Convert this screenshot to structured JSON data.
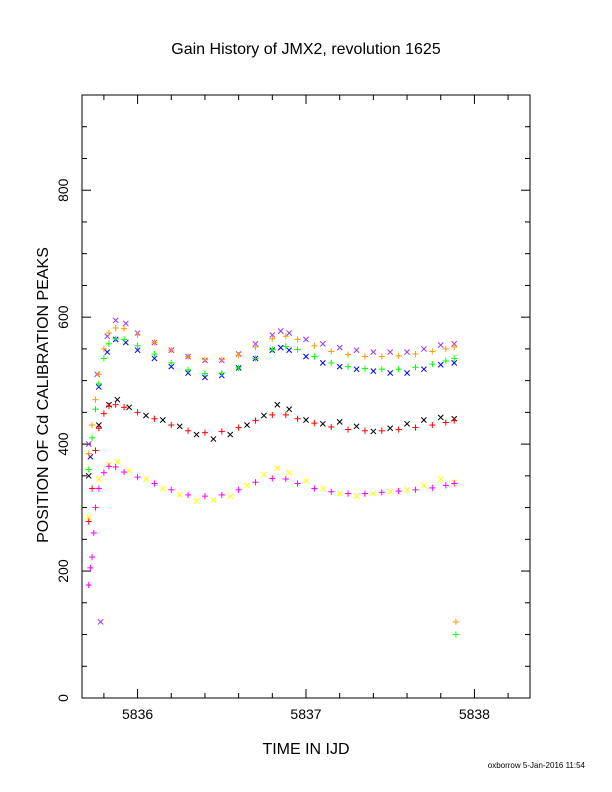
{
  "chart_data": {
    "type": "scatter",
    "title": "Gain History of JMX2, revolution 1625",
    "xlabel": "TIME IN IJD",
    "ylabel": "POSITION OF Cd CALIBRATION PEAKS",
    "xlim": [
      5835.67,
      5838.33
    ],
    "ylim": [
      0,
      950
    ],
    "xticks": [
      5836,
      5837,
      5838
    ],
    "yticks": [
      0,
      200,
      400,
      600,
      800
    ],
    "grid": false,
    "series": [
      {
        "marker": "x",
        "color": "#9933ff",
        "points": [
          [
            5835.71,
            400
          ],
          [
            5835.76,
            510
          ],
          [
            5835.82,
            570
          ],
          [
            5835.87,
            595
          ],
          [
            5835.93,
            590
          ],
          [
            5836.0,
            575
          ],
          [
            5836.1,
            560
          ],
          [
            5836.2,
            548
          ],
          [
            5836.3,
            538
          ],
          [
            5836.4,
            532
          ],
          [
            5836.5,
            532
          ],
          [
            5836.6,
            542
          ],
          [
            5836.7,
            558
          ],
          [
            5836.8,
            572
          ],
          [
            5836.85,
            578
          ],
          [
            5836.9,
            575
          ],
          [
            5837.0,
            565
          ],
          [
            5837.1,
            558
          ],
          [
            5837.2,
            552
          ],
          [
            5837.3,
            548
          ],
          [
            5837.4,
            545
          ],
          [
            5837.5,
            545
          ],
          [
            5837.6,
            545
          ],
          [
            5837.7,
            550
          ],
          [
            5837.8,
            556
          ],
          [
            5837.88,
            558
          ]
        ]
      },
      {
        "marker": "x",
        "color": "#0000ff",
        "points": [
          [
            5835.72,
            380
          ],
          [
            5835.77,
            490
          ],
          [
            5835.82,
            545
          ],
          [
            5835.87,
            565
          ],
          [
            5835.93,
            560
          ],
          [
            5836.0,
            548
          ],
          [
            5836.1,
            535
          ],
          [
            5836.2,
            522
          ],
          [
            5836.3,
            512
          ],
          [
            5836.4,
            505
          ],
          [
            5836.5,
            508
          ],
          [
            5836.6,
            520
          ],
          [
            5836.7,
            535
          ],
          [
            5836.8,
            548
          ],
          [
            5836.85,
            552
          ],
          [
            5836.9,
            548
          ],
          [
            5837.0,
            538
          ],
          [
            5837.1,
            528
          ],
          [
            5837.2,
            522
          ],
          [
            5837.3,
            518
          ],
          [
            5837.4,
            515
          ],
          [
            5837.5,
            512
          ],
          [
            5837.6,
            512
          ],
          [
            5837.7,
            518
          ],
          [
            5837.8,
            525
          ],
          [
            5837.88,
            528
          ]
        ]
      },
      {
        "marker": "x",
        "color": "#000000",
        "points": [
          [
            5835.71,
            350
          ],
          [
            5835.77,
            430
          ],
          [
            5835.83,
            462
          ],
          [
            5835.88,
            470
          ],
          [
            5835.95,
            458
          ],
          [
            5836.05,
            445
          ],
          [
            5836.15,
            438
          ],
          [
            5836.25,
            428
          ],
          [
            5836.35,
            415
          ],
          [
            5836.45,
            408
          ],
          [
            5836.55,
            415
          ],
          [
            5836.65,
            430
          ],
          [
            5836.75,
            445
          ],
          [
            5836.83,
            462
          ],
          [
            5836.9,
            455
          ],
          [
            5837.0,
            438
          ],
          [
            5837.1,
            432
          ],
          [
            5837.2,
            435
          ],
          [
            5837.3,
            428
          ],
          [
            5837.4,
            420
          ],
          [
            5837.5,
            425
          ],
          [
            5837.6,
            432
          ],
          [
            5837.7,
            438
          ],
          [
            5837.8,
            442
          ],
          [
            5837.88,
            440
          ]
        ]
      },
      {
        "marker": "x",
        "color": "#ffff00",
        "points": [
          [
            5835.71,
            285
          ],
          [
            5835.77,
            345
          ],
          [
            5835.83,
            368
          ],
          [
            5835.88,
            372
          ],
          [
            5835.95,
            358
          ],
          [
            5836.05,
            345
          ],
          [
            5836.15,
            330
          ],
          [
            5836.25,
            320
          ],
          [
            5836.35,
            310
          ],
          [
            5836.45,
            312
          ],
          [
            5836.55,
            318
          ],
          [
            5836.65,
            335
          ],
          [
            5836.75,
            352
          ],
          [
            5836.83,
            362
          ],
          [
            5836.9,
            355
          ],
          [
            5837.0,
            342
          ],
          [
            5837.1,
            330
          ],
          [
            5837.2,
            322
          ],
          [
            5837.3,
            318
          ],
          [
            5837.4,
            322
          ],
          [
            5837.5,
            325
          ],
          [
            5837.6,
            328
          ],
          [
            5837.7,
            335
          ],
          [
            5837.8,
            345
          ],
          [
            5837.88,
            340
          ]
        ]
      },
      {
        "marker": "+",
        "color": "#ff9900",
        "points": [
          [
            5835.71,
            385
          ],
          [
            5835.73,
            430
          ],
          [
            5835.75,
            470
          ],
          [
            5835.77,
            510
          ],
          [
            5835.8,
            550
          ],
          [
            5835.83,
            575
          ],
          [
            5835.87,
            583
          ],
          [
            5835.92,
            582
          ],
          [
            5836.0,
            572
          ],
          [
            5836.1,
            560
          ],
          [
            5836.2,
            548
          ],
          [
            5836.3,
            538
          ],
          [
            5836.4,
            533
          ],
          [
            5836.5,
            533
          ],
          [
            5836.6,
            540
          ],
          [
            5836.7,
            553
          ],
          [
            5836.8,
            566
          ],
          [
            5836.88,
            570
          ],
          [
            5836.95,
            565
          ],
          [
            5837.05,
            555
          ],
          [
            5837.15,
            546
          ],
          [
            5837.25,
            541
          ],
          [
            5837.35,
            538
          ],
          [
            5837.45,
            538
          ],
          [
            5837.55,
            539
          ],
          [
            5837.65,
            542
          ],
          [
            5837.75,
            546
          ],
          [
            5837.83,
            550
          ],
          [
            5837.88,
            553
          ],
          [
            5837.89,
            120
          ]
        ]
      },
      {
        "marker": "+",
        "color": "#00ff00",
        "points": [
          [
            5835.71,
            360
          ],
          [
            5835.73,
            410
          ],
          [
            5835.75,
            455
          ],
          [
            5835.77,
            495
          ],
          [
            5835.8,
            535
          ],
          [
            5835.83,
            558
          ],
          [
            5835.87,
            566
          ],
          [
            5835.92,
            565
          ],
          [
            5836.0,
            555
          ],
          [
            5836.1,
            542
          ],
          [
            5836.2,
            528
          ],
          [
            5836.3,
            517
          ],
          [
            5836.4,
            511
          ],
          [
            5836.5,
            512
          ],
          [
            5836.6,
            520
          ],
          [
            5836.7,
            535
          ],
          [
            5836.8,
            549
          ],
          [
            5836.88,
            554
          ],
          [
            5836.95,
            549
          ],
          [
            5837.05,
            538
          ],
          [
            5837.15,
            528
          ],
          [
            5837.25,
            522
          ],
          [
            5837.35,
            519
          ],
          [
            5837.45,
            518
          ],
          [
            5837.55,
            518
          ],
          [
            5837.65,
            521
          ],
          [
            5837.75,
            526
          ],
          [
            5837.83,
            531
          ],
          [
            5837.88,
            535
          ],
          [
            5837.89,
            100
          ]
        ]
      },
      {
        "marker": "+",
        "color": "#ff0000",
        "points": [
          [
            5835.71,
            278
          ],
          [
            5835.73,
            330
          ],
          [
            5835.75,
            390
          ],
          [
            5835.77,
            425
          ],
          [
            5835.8,
            448
          ],
          [
            5835.83,
            460
          ],
          [
            5835.87,
            462
          ],
          [
            5835.92,
            458
          ],
          [
            5836.0,
            450
          ],
          [
            5836.1,
            440
          ],
          [
            5836.2,
            430
          ],
          [
            5836.3,
            421
          ],
          [
            5836.4,
            418
          ],
          [
            5836.5,
            420
          ],
          [
            5836.6,
            426
          ],
          [
            5836.7,
            437
          ],
          [
            5836.8,
            446
          ],
          [
            5836.88,
            446
          ],
          [
            5836.95,
            440
          ],
          [
            5837.05,
            433
          ],
          [
            5837.15,
            427
          ],
          [
            5837.25,
            423
          ],
          [
            5837.35,
            421
          ],
          [
            5837.45,
            421
          ],
          [
            5837.55,
            423
          ],
          [
            5837.65,
            426
          ],
          [
            5837.75,
            430
          ],
          [
            5837.83,
            434
          ],
          [
            5837.88,
            437
          ]
        ]
      },
      {
        "marker": "+",
        "color": "#ff00ff",
        "points": [
          [
            5835.71,
            178
          ],
          [
            5835.72,
            205
          ],
          [
            5835.73,
            222
          ],
          [
            5835.74,
            260
          ],
          [
            5835.75,
            300
          ],
          [
            5835.77,
            330
          ],
          [
            5835.8,
            355
          ],
          [
            5835.83,
            365
          ],
          [
            5835.87,
            364
          ],
          [
            5835.92,
            356
          ],
          [
            5836.0,
            348
          ],
          [
            5836.1,
            338
          ],
          [
            5836.2,
            328
          ],
          [
            5836.3,
            320
          ],
          [
            5836.4,
            318
          ],
          [
            5836.5,
            320
          ],
          [
            5836.6,
            328
          ],
          [
            5836.7,
            340
          ],
          [
            5836.8,
            346
          ],
          [
            5836.88,
            345
          ],
          [
            5836.95,
            338
          ],
          [
            5837.05,
            330
          ],
          [
            5837.15,
            325
          ],
          [
            5837.25,
            322
          ],
          [
            5837.35,
            322
          ],
          [
            5837.45,
            324
          ],
          [
            5837.55,
            326
          ],
          [
            5837.65,
            328
          ],
          [
            5837.75,
            331
          ],
          [
            5837.83,
            335
          ],
          [
            5837.88,
            338
          ]
        ]
      }
    ],
    "stray_points": [
      {
        "marker": "x",
        "color": "#9933ff",
        "x": 5835.78,
        "y": 120
      }
    ]
  },
  "footer": "oxborrow  5-Jan-2016 11:54"
}
